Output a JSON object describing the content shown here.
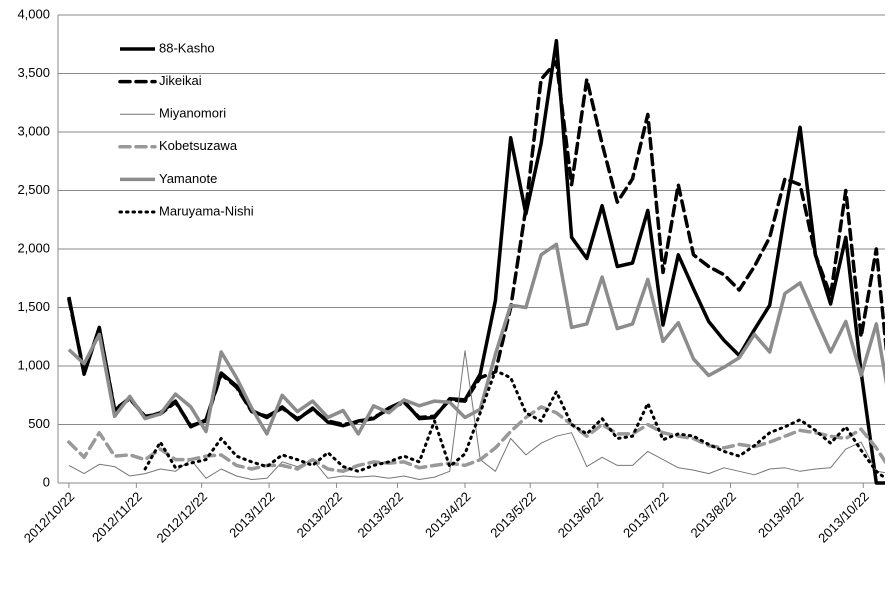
{
  "chart_data": {
    "type": "line",
    "x": [
      "2012/10/22",
      "2012/10/29",
      "2012/11/5",
      "2012/11/12",
      "2012/11/19",
      "2012/11/26",
      "2012/12/3",
      "2012/12/10",
      "2012/12/17",
      "2012/12/24",
      "2012/12/31",
      "2013/1/7",
      "2013/1/14",
      "2013/1/21",
      "2013/1/28",
      "2013/2/4",
      "2013/2/11",
      "2013/2/18",
      "2013/2/25",
      "2013/3/4",
      "2013/3/11",
      "2013/3/18",
      "2013/3/25",
      "2013/4/1",
      "2013/4/8",
      "2013/4/15",
      "2013/4/22",
      "2013/4/29",
      "2013/5/6",
      "2013/5/13",
      "2013/5/20",
      "2013/5/27",
      "2013/6/3",
      "2013/6/10",
      "2013/6/17",
      "2013/6/24",
      "2013/7/1",
      "2013/7/8",
      "2013/7/15",
      "2013/7/22",
      "2013/7/29",
      "2013/8/5",
      "2013/8/12",
      "2013/8/19",
      "2013/8/26",
      "2013/9/2",
      "2013/9/9",
      "2013/9/16",
      "2013/9/23",
      "2013/9/30",
      "2013/10/7",
      "2013/10/14",
      "2013/10/21",
      "2013/10/28",
      "2013/11/4"
    ],
    "xlim": [
      "2012/10/17",
      "2013/11/1"
    ],
    "xticks": [
      "2012/10/22",
      "2012/11/22",
      "2012/12/22",
      "2013/1/22",
      "2013/2/22",
      "2013/3/22",
      "2013/4/22",
      "2013/5/22",
      "2013/6/22",
      "2013/7/22",
      "2013/8/22",
      "2013/9/22",
      "2013/10/22"
    ],
    "ylim": [
      0,
      4000
    ],
    "yticks": [
      0,
      500,
      {
        "value": 1000,
        "label": "1,000"
      },
      {
        "value": 1500,
        "label": "1,500"
      },
      {
        "value": 2000,
        "label": "2,000"
      },
      {
        "value": 2500,
        "label": "2,500"
      },
      {
        "value": 3000,
        "label": "3,000"
      },
      {
        "value": 3500,
        "label": "3,500"
      },
      {
        "value": 4000,
        "label": "4,000"
      }
    ],
    "grid": true,
    "legend": "upper-left",
    "series": [
      {
        "name": "88-Kasho",
        "color": "#000000",
        "width": 3.5,
        "dash": "none",
        "values": [
          1590,
          930,
          1330,
          620,
          730,
          560,
          600,
          700,
          480,
          540,
          940,
          830,
          620,
          560,
          650,
          540,
          640,
          520,
          490,
          530,
          550,
          640,
          700,
          550,
          560,
          720,
          710,
          930,
          1560,
          2950,
          2300,
          2900,
          3780,
          2100,
          1920,
          2370,
          1850,
          1880,
          2330,
          1350,
          1950,
          1660,
          1380,
          1220,
          1090,
          1310,
          1520,
          2300,
          3040,
          1950,
          1530,
          2100,
          950,
          0,
          0
        ]
      },
      {
        "name": "Jikeikai",
        "color": "#000000",
        "width": 3.5,
        "dash": "10,6",
        "values": [
          1570,
          950,
          1320,
          630,
          720,
          570,
          590,
          690,
          490,
          530,
          930,
          820,
          610,
          570,
          640,
          550,
          630,
          530,
          500,
          520,
          560,
          630,
          690,
          560,
          570,
          710,
          700,
          900,
          950,
          1500,
          2350,
          3450,
          3600,
          2550,
          3450,
          2900,
          2400,
          2600,
          3150,
          1800,
          2550,
          1950,
          1850,
          1780,
          1650,
          1850,
          2100,
          2600,
          2550,
          1950,
          1600,
          2500,
          1250,
          2000,
          700
        ]
      },
      {
        "name": "Miyanomori",
        "color": "#777777",
        "width": 1,
        "dash": "none",
        "values": [
          150,
          80,
          160,
          140,
          60,
          80,
          120,
          100,
          200,
          40,
          120,
          60,
          30,
          40,
          180,
          140,
          200,
          40,
          60,
          50,
          60,
          40,
          60,
          30,
          50,
          100,
          1130,
          200,
          100,
          380,
          240,
          340,
          400,
          430,
          140,
          220,
          150,
          150,
          270,
          200,
          130,
          110,
          80,
          130,
          100,
          70,
          120,
          130,
          100,
          120,
          130,
          290,
          350,
          100,
          80
        ]
      },
      {
        "name": "Kobetsuzawa",
        "color": "#999999",
        "width": 3.5,
        "dash": "10,6",
        "values": [
          350,
          220,
          430,
          230,
          240,
          200,
          290,
          200,
          200,
          230,
          240,
          150,
          120,
          150,
          150,
          120,
          200,
          120,
          100,
          150,
          180,
          170,
          180,
          130,
          150,
          170,
          150,
          200,
          300,
          440,
          560,
          650,
          600,
          500,
          400,
          500,
          420,
          420,
          500,
          430,
          400,
          380,
          320,
          300,
          330,
          310,
          350,
          400,
          450,
          430,
          400,
          380,
          460,
          300,
          100
        ]
      },
      {
        "name": "Yamanote",
        "color": "#8c8c8c",
        "width": 3.5,
        "dash": "none",
        "values": [
          1140,
          1020,
          1270,
          570,
          740,
          550,
          590,
          760,
          650,
          440,
          1120,
          900,
          640,
          420,
          750,
          610,
          700,
          560,
          620,
          420,
          660,
          600,
          710,
          660,
          700,
          690,
          560,
          630,
          1100,
          1520,
          1500,
          1950,
          2040,
          1330,
          1360,
          1760,
          1320,
          1360,
          1740,
          1210,
          1370,
          1060,
          920,
          990,
          1070,
          1270,
          1120,
          1620,
          1710,
          1410,
          1120,
          1380,
          920,
          1360,
          600
        ]
      },
      {
        "name": "Maruyama-Nishi",
        "color": "#000000",
        "width": 3,
        "dash": "1.5,5",
        "values": [
          null,
          null,
          null,
          null,
          null,
          120,
          350,
          130,
          170,
          200,
          380,
          230,
          180,
          140,
          240,
          200,
          150,
          260,
          140,
          100,
          150,
          180,
          230,
          180,
          530,
          140,
          250,
          600,
          960,
          900,
          600,
          530,
          780,
          500,
          420,
          550,
          380,
          400,
          680,
          370,
          420,
          400,
          330,
          270,
          230,
          320,
          430,
          480,
          540,
          450,
          340,
          480,
          280,
          100,
          0
        ]
      }
    ]
  }
}
